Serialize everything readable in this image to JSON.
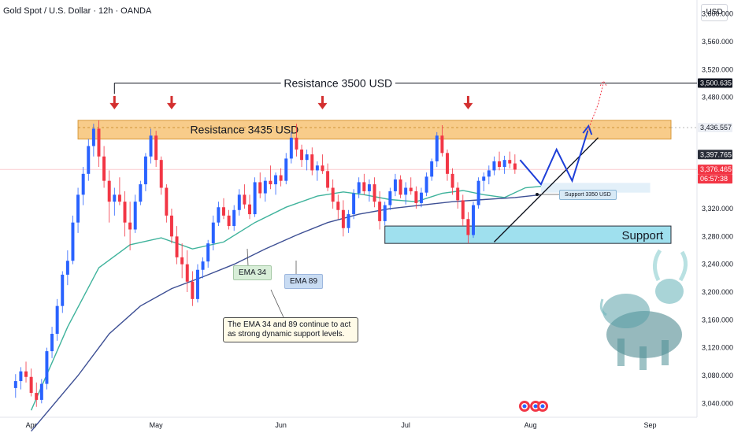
{
  "header": {
    "title": "Gold Spot / U.S. Dollar · 12h · OANDA",
    "currency": "USD"
  },
  "y_axis": {
    "ticks": [
      "3,600.000",
      "3,560.000",
      "3,520.000",
      "3,480.000",
      "3,320.000",
      "3,280.000",
      "3,240.000",
      "3,200.000",
      "3,160.000",
      "3,120.000",
      "3,080.000",
      "3,040.000"
    ],
    "tick_values": [
      3600,
      3560,
      3520,
      3480,
      3320,
      3280,
      3240,
      3200,
      3160,
      3120,
      3080,
      3040
    ]
  },
  "x_axis": {
    "labels": [
      "Apr",
      "May",
      "Jun",
      "Jul",
      "Aug",
      "Sep"
    ],
    "label_times": [
      3,
      27,
      51,
      75,
      99,
      122
    ]
  },
  "price_tags": [
    {
      "text": "3,500.635",
      "value": 3500.635,
      "bg": "#131722",
      "fg": "#ffffff"
    },
    {
      "text": "3,436.557",
      "value": 3436.557,
      "bg": "#eceff5",
      "fg": "#131722"
    },
    {
      "text": "3,397.765",
      "value": 3397.765,
      "bg": "#2a2e39",
      "fg": "#ffffff"
    },
    {
      "text": "3,376.465",
      "value": 3376.465,
      "bg": "#f23645",
      "fg": "#ffffff"
    },
    {
      "text": "06:57:38",
      "value": 3366.5,
      "bg": "#f23645",
      "fg": "#ffffff"
    }
  ],
  "annotations": {
    "resistance_top": {
      "text": "Resistance 3500 USD",
      "value": 3500.635
    },
    "resistance_zone": {
      "text": "Resistance 3435 USD",
      "low": 3420,
      "high": 3447
    },
    "support_zone": {
      "text": "Support",
      "low": 3270,
      "high": 3295
    },
    "support_3350": {
      "text": "Support 3350 USD",
      "value": 3350
    },
    "ema34_label": "EMA 34",
    "ema89_label": "EMA 89",
    "note": "The EMA 34 and 89 continue to act as strong dynamic support levels."
  },
  "colors": {
    "up": "#2962ff",
    "down": "#f23645",
    "ema34": "#3fb39c",
    "ema89": "#3d4f94",
    "resistance": "#f8cc8a",
    "support": "#9fe0ee",
    "arrow": "#d32f2f",
    "projection": "#1e3fd8"
  },
  "chart_data": {
    "type": "candlestick",
    "title": "Gold Spot / U.S. Dollar · 12h · OANDA",
    "ylim": [
      3020,
      3620
    ],
    "xlim": [
      -3,
      131
    ],
    "candles": [
      [
        3062,
        3082,
        3048,
        3072
      ],
      [
        3072,
        3092,
        3060,
        3086
      ],
      [
        3086,
        3100,
        3070,
        3078
      ],
      [
        3078,
        3090,
        3050,
        3055
      ],
      [
        3055,
        3070,
        3035,
        3045
      ],
      [
        3045,
        3075,
        3040,
        3068
      ],
      [
        3068,
        3120,
        3060,
        3115
      ],
      [
        3115,
        3150,
        3105,
        3140
      ],
      [
        3140,
        3190,
        3130,
        3180
      ],
      [
        3180,
        3230,
        3170,
        3225
      ],
      [
        3225,
        3260,
        3210,
        3245
      ],
      [
        3245,
        3310,
        3240,
        3300
      ],
      [
        3300,
        3350,
        3285,
        3340
      ],
      [
        3340,
        3380,
        3325,
        3370
      ],
      [
        3370,
        3420,
        3360,
        3410
      ],
      [
        3410,
        3442,
        3395,
        3435
      ],
      [
        3435,
        3447,
        3380,
        3395
      ],
      [
        3395,
        3410,
        3350,
        3360
      ],
      [
        3360,
        3375,
        3300,
        3330
      ],
      [
        3330,
        3350,
        3310,
        3340
      ],
      [
        3340,
        3365,
        3325,
        3330
      ],
      [
        3330,
        3345,
        3280,
        3300
      ],
      [
        3300,
        3330,
        3260,
        3290
      ],
      [
        3290,
        3340,
        3285,
        3330
      ],
      [
        3330,
        3360,
        3325,
        3355
      ],
      [
        3355,
        3400,
        3345,
        3395
      ],
      [
        3395,
        3435,
        3385,
        3425
      ],
      [
        3425,
        3432,
        3380,
        3390
      ],
      [
        3390,
        3395,
        3340,
        3350
      ],
      [
        3350,
        3355,
        3300,
        3310
      ],
      [
        3310,
        3320,
        3270,
        3280
      ],
      [
        3280,
        3295,
        3240,
        3250
      ],
      [
        3250,
        3270,
        3220,
        3240
      ],
      [
        3240,
        3260,
        3200,
        3215
      ],
      [
        3215,
        3230,
        3180,
        3190
      ],
      [
        3190,
        3240,
        3185,
        3232
      ],
      [
        3232,
        3250,
        3220,
        3244
      ],
      [
        3244,
        3275,
        3235,
        3270
      ],
      [
        3270,
        3310,
        3260,
        3300
      ],
      [
        3300,
        3330,
        3295,
        3322
      ],
      [
        3322,
        3335,
        3305,
        3310
      ],
      [
        3310,
        3318,
        3290,
        3295
      ],
      [
        3295,
        3325,
        3288,
        3318
      ],
      [
        3318,
        3348,
        3310,
        3340
      ],
      [
        3340,
        3355,
        3320,
        3326
      ],
      [
        3326,
        3340,
        3305,
        3312
      ],
      [
        3312,
        3365,
        3308,
        3358
      ],
      [
        3358,
        3372,
        3335,
        3342
      ],
      [
        3342,
        3365,
        3330,
        3360
      ],
      [
        3360,
        3382,
        3348,
        3355
      ],
      [
        3355,
        3372,
        3340,
        3368
      ],
      [
        3368,
        3378,
        3352,
        3360
      ],
      [
        3360,
        3400,
        3355,
        3392
      ],
      [
        3392,
        3430,
        3385,
        3422
      ],
      [
        3422,
        3442,
        3395,
        3405
      ],
      [
        3405,
        3412,
        3380,
        3390
      ],
      [
        3390,
        3405,
        3375,
        3398
      ],
      [
        3398,
        3408,
        3368,
        3375
      ],
      [
        3375,
        3388,
        3360,
        3382
      ],
      [
        3382,
        3398,
        3370,
        3374
      ],
      [
        3374,
        3385,
        3345,
        3350
      ],
      [
        3350,
        3362,
        3320,
        3330
      ],
      [
        3330,
        3340,
        3305,
        3318
      ],
      [
        3318,
        3332,
        3280,
        3292
      ],
      [
        3292,
        3318,
        3285,
        3312
      ],
      [
        3312,
        3348,
        3305,
        3342
      ],
      [
        3342,
        3365,
        3335,
        3358
      ],
      [
        3358,
        3370,
        3340,
        3345
      ],
      [
        3345,
        3362,
        3330,
        3355
      ],
      [
        3355,
        3365,
        3322,
        3330
      ],
      [
        3330,
        3345,
        3290,
        3302
      ],
      [
        3302,
        3330,
        3296,
        3325
      ],
      [
        3325,
        3350,
        3318,
        3345
      ],
      [
        3345,
        3370,
        3338,
        3362
      ],
      [
        3362,
        3368,
        3335,
        3340
      ],
      [
        3340,
        3358,
        3326,
        3350
      ],
      [
        3350,
        3365,
        3340,
        3345
      ],
      [
        3345,
        3352,
        3320,
        3328
      ],
      [
        3328,
        3350,
        3322,
        3343
      ],
      [
        3343,
        3372,
        3338,
        3366
      ],
      [
        3366,
        3392,
        3360,
        3388
      ],
      [
        3388,
        3430,
        3380,
        3425
      ],
      [
        3425,
        3440,
        3395,
        3400
      ],
      [
        3400,
        3405,
        3360,
        3370
      ],
      [
        3370,
        3378,
        3340,
        3350
      ],
      [
        3350,
        3358,
        3320,
        3332
      ],
      [
        3332,
        3340,
        3295,
        3305
      ],
      [
        3305,
        3315,
        3270,
        3282
      ],
      [
        3282,
        3330,
        3278,
        3325
      ],
      [
        3325,
        3365,
        3320,
        3360
      ],
      [
        3360,
        3372,
        3345,
        3366
      ],
      [
        3366,
        3382,
        3355,
        3375
      ],
      [
        3375,
        3395,
        3368,
        3388
      ],
      [
        3388,
        3402,
        3375,
        3380
      ],
      [
        3380,
        3396,
        3370,
        3390
      ],
      [
        3390,
        3402,
        3378,
        3385
      ],
      [
        3385,
        3398,
        3370,
        3376
      ]
    ],
    "ema34": [
      [
        3,
        3030
      ],
      [
        10,
        3150
      ],
      [
        16,
        3235
      ],
      [
        22,
        3268
      ],
      [
        28,
        3278
      ],
      [
        34,
        3262
      ],
      [
        40,
        3272
      ],
      [
        46,
        3300
      ],
      [
        52,
        3322
      ],
      [
        58,
        3338
      ],
      [
        63,
        3344
      ],
      [
        67,
        3340
      ],
      [
        72,
        3333
      ],
      [
        77,
        3330
      ],
      [
        82,
        3342
      ],
      [
        86,
        3346
      ],
      [
        90,
        3340
      ],
      [
        94,
        3336
      ],
      [
        98,
        3350
      ],
      [
        101,
        3352
      ]
    ],
    "ema89": [
      [
        3,
        3000
      ],
      [
        12,
        3080
      ],
      [
        18,
        3140
      ],
      [
        24,
        3180
      ],
      [
        30,
        3205
      ],
      [
        36,
        3222
      ],
      [
        42,
        3240
      ],
      [
        48,
        3262
      ],
      [
        54,
        3282
      ],
      [
        60,
        3300
      ],
      [
        66,
        3312
      ],
      [
        72,
        3320
      ],
      [
        78,
        3325
      ],
      [
        84,
        3330
      ],
      [
        90,
        3333
      ],
      [
        96,
        3336
      ],
      [
        101,
        3340
      ]
    ],
    "projection": [
      [
        97,
        3390
      ],
      [
        101,
        3355
      ],
      [
        104,
        3405
      ],
      [
        107,
        3360
      ],
      [
        110,
        3432
      ]
    ],
    "projection_dotted": [
      [
        110,
        3432
      ],
      [
        112,
        3470
      ],
      [
        113,
        3500
      ]
    ],
    "trendline": [
      [
        92,
        3272
      ],
      [
        112,
        3422
      ]
    ],
    "arrow_times": [
      19,
      30,
      59,
      87
    ]
  }
}
